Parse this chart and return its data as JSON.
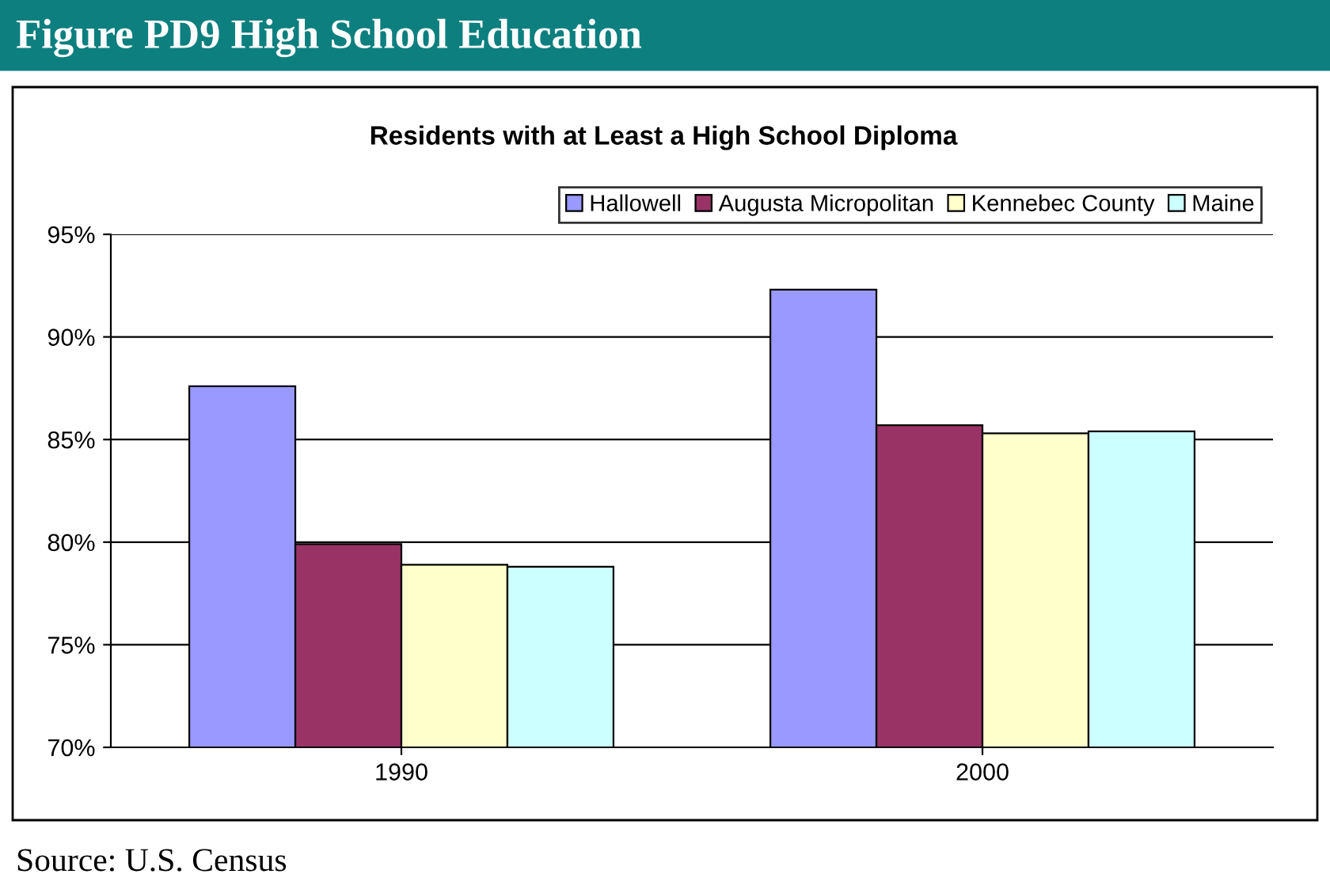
{
  "chart_data": {
    "type": "bar",
    "title": "Figure PD9 High School Education",
    "subtitle": "Residents with at Least a High School Diploma",
    "categories": [
      "1990",
      "2000"
    ],
    "series": [
      {
        "name": "Hallowell",
        "color": "#9999ff",
        "values": [
          87.6,
          92.3
        ]
      },
      {
        "name": "Augusta Micropolitan",
        "color": "#993366",
        "values": [
          79.9,
          85.7
        ]
      },
      {
        "name": "Kennebec County",
        "color": "#ffffcc",
        "values": [
          78.9,
          85.3
        ]
      },
      {
        "name": "Maine",
        "color": "#ccffff",
        "values": [
          78.8,
          85.4
        ]
      }
    ],
    "ylim": [
      70,
      95
    ],
    "yticks": [
      {
        "value": 70,
        "label": "70%"
      },
      {
        "value": 75,
        "label": "75%"
      },
      {
        "value": 80,
        "label": "80%"
      },
      {
        "value": 85,
        "label": "85%"
      },
      {
        "value": 90,
        "label": "90%"
      },
      {
        "value": 95,
        "label": "95%"
      }
    ],
    "grid": "y",
    "legend": "top right",
    "annotations": [
      "Source: U.S. Census"
    ]
  }
}
